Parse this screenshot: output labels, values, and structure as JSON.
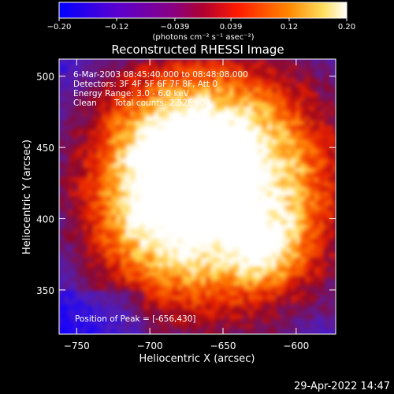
{
  "chart_data": {
    "type": "heatmap",
    "title": "Reconstructed RHESSI Image",
    "xlabel": "Heliocentric X (arcsec)",
    "ylabel": "Heliocentric Y (arcsec)",
    "xlim": [
      -762,
      -573
    ],
    "ylim": [
      319,
      512
    ],
    "xticks": [
      -750,
      -700,
      -650,
      -600
    ],
    "xtick_labels": [
      "−750",
      "−700",
      "−650",
      "−600"
    ],
    "yticks": [
      350,
      400,
      450,
      500
    ],
    "ytick_labels": [
      "350",
      "400",
      "450",
      "500"
    ],
    "colorbar": {
      "range": [
        -0.2,
        0.2
      ],
      "ticks": [
        -0.2,
        -0.12,
        -0.039,
        0.039,
        0.12,
        0.2
      ],
      "tick_labels": [
        "−0.20",
        "−0.12",
        "−0.039",
        "0.039",
        "0.12",
        "0.20"
      ],
      "units": "(photons cm⁻² s⁻¹ asec⁻²)",
      "colors": [
        "#0000ff",
        "#6600cc",
        "#aa0040",
        "#ff2000",
        "#ff9000",
        "#ffffff"
      ]
    },
    "info": {
      "time_range": "6-Mar-2003 08:45:40.000 to 08:48:08.000",
      "detectors": "Detectors: 3F 4F 5F 6F 7F 8F, Att 0",
      "energy_range": "Energy Range: 3.0 - 6.0 keV",
      "method": "Clean",
      "total_counts": "Total counts: 2.52E+04",
      "peak": "Position of Peak = [-656,430]"
    },
    "peak": {
      "x": -656,
      "y": 430
    },
    "timestamp": "29-Apr-2022 14:47"
  }
}
